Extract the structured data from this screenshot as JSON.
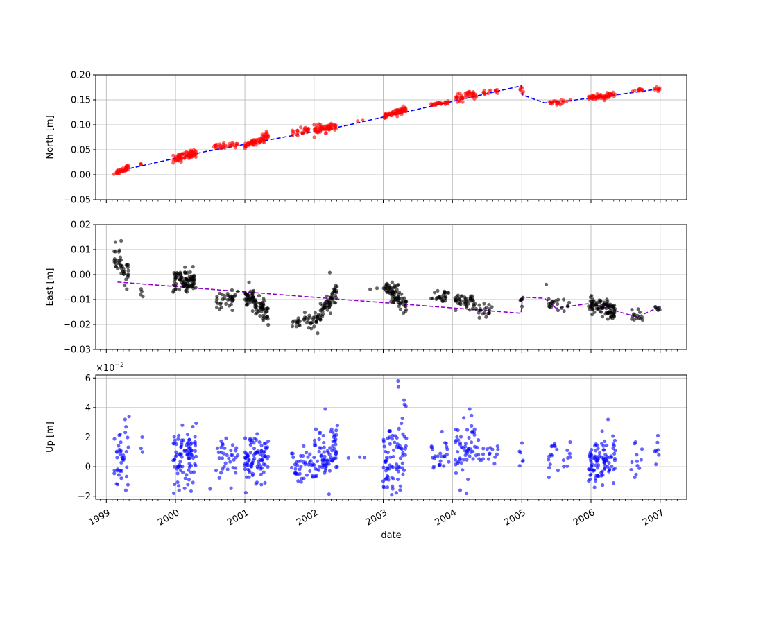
{
  "figure": {
    "xlabel": "date",
    "x_range": [
      "1998-11-06",
      "2007-05-21"
    ],
    "x_ticks": [
      "1999",
      "2000",
      "2001",
      "2002",
      "2003",
      "2004",
      "2005",
      "2006",
      "2007"
    ],
    "grid": true,
    "legend": "none"
  },
  "chart_data": [
    {
      "type": "scatter",
      "panel": "north",
      "ylabel": "North [m]",
      "ylim": [
        -0.05,
        0.2
      ],
      "yticks": [
        -0.05,
        0.0,
        0.05,
        0.1,
        0.15,
        0.2
      ],
      "ytick_labels": [
        "−0.05",
        "0.00",
        "0.05",
        "0.10",
        "0.15",
        "0.20"
      ],
      "point_color": "#ff0000",
      "trend_color": "#0000ff",
      "clusters": [
        {
          "start": "1999-02-10",
          "end": "1999-04-30",
          "n": 34,
          "noise": 0.003,
          "y0": 0.002,
          "y1": 0.016
        },
        {
          "start": "1999-07-01",
          "end": "1999-07-10",
          "n": 3,
          "noise": 0.003,
          "y0": 0.02,
          "y1": 0.021
        },
        {
          "start": "1999-12-20",
          "end": "2000-04-20",
          "n": 70,
          "noise": 0.004,
          "y0": 0.03,
          "y1": 0.045
        },
        {
          "start": "2000-07-20",
          "end": "2000-11-25",
          "n": 30,
          "noise": 0.003,
          "y0": 0.054,
          "y1": 0.062
        },
        {
          "start": "2001-01-01",
          "end": "2001-05-05",
          "n": 65,
          "noise": 0.004,
          "y0": 0.059,
          "y1": 0.077
        },
        {
          "start": "2001-09-01",
          "end": "2001-12-10",
          "n": 25,
          "noise": 0.004,
          "y0": 0.082,
          "y1": 0.092
        },
        {
          "start": "2002-01-01",
          "end": "2002-05-05",
          "n": 60,
          "noise": 0.004,
          "y0": 0.089,
          "y1": 0.097
        },
        {
          "start": "2002-08-15",
          "end": "2002-12-01",
          "n": 2,
          "noise": 0.002,
          "y0": 0.106,
          "y1": 0.114
        },
        {
          "start": "2003-01-01",
          "end": "2003-05-05",
          "n": 60,
          "noise": 0.003,
          "y0": 0.117,
          "y1": 0.131
        },
        {
          "start": "2003-09-10",
          "end": "2003-12-15",
          "n": 25,
          "noise": 0.002,
          "y0": 0.14,
          "y1": 0.145
        },
        {
          "start": "2004-01-20",
          "end": "2004-05-10",
          "n": 45,
          "noise": 0.004,
          "y0": 0.152,
          "y1": 0.162
        },
        {
          "start": "2004-06-01",
          "end": "2004-08-31",
          "n": 14,
          "noise": 0.002,
          "y0": 0.163,
          "y1": 0.169
        },
        {
          "start": "2004-12-20",
          "end": "2005-01-10",
          "n": 6,
          "noise": 0.004,
          "y0": 0.171,
          "y1": 0.163
        },
        {
          "start": "2005-05-20",
          "end": "2005-09-15",
          "n": 22,
          "noise": 0.003,
          "y0": 0.144,
          "y1": 0.148
        },
        {
          "start": "2005-12-20",
          "end": "2006-05-10",
          "n": 65,
          "noise": 0.003,
          "y0": 0.153,
          "y1": 0.161
        },
        {
          "start": "2006-08-01",
          "end": "2006-10-01",
          "n": 10,
          "noise": 0.002,
          "y0": 0.167,
          "y1": 0.17
        },
        {
          "start": "2006-12-01",
          "end": "2006-12-31",
          "n": 8,
          "noise": 0.003,
          "y0": 0.171,
          "y1": 0.172
        }
      ],
      "trend": [
        {
          "x": "1999-03-01",
          "y": 0.007
        },
        {
          "x": "2000-06-01",
          "y": 0.046
        },
        {
          "x": "2002-06-01",
          "y": 0.097
        },
        {
          "x": "2004-12-28",
          "y": 0.178
        },
        {
          "x": "2005-01-05",
          "y": 0.16
        },
        {
          "x": "2005-05-01",
          "y": 0.144
        },
        {
          "x": "2005-09-01",
          "y": 0.148
        },
        {
          "x": "2006-06-01",
          "y": 0.161
        },
        {
          "x": "2006-12-28",
          "y": 0.172
        }
      ]
    },
    {
      "type": "scatter",
      "panel": "east",
      "ylabel": "East [m]",
      "ylim": [
        -0.03,
        0.02
      ],
      "yticks": [
        -0.03,
        -0.02,
        -0.01,
        0.0,
        0.01,
        0.02
      ],
      "ytick_labels": [
        "−0.03",
        "−0.02",
        "−0.01",
        "0.00",
        "0.01",
        "0.02"
      ],
      "point_color": "#000000",
      "trend_color": "#9400d3",
      "clusters": [
        {
          "start": "1999-02-10",
          "end": "1999-04-30",
          "n": 40,
          "noise": 0.0025,
          "y0": 0.006,
          "y1": 0.0
        },
        {
          "start": "1999-07-01",
          "end": "1999-07-15",
          "n": 4,
          "noise": 0.002,
          "y0": -0.004,
          "y1": -0.007
        },
        {
          "start": "1999-12-20",
          "end": "2000-04-20",
          "n": 90,
          "noise": 0.0022,
          "y0": -0.003,
          "y1": -0.002
        },
        {
          "start": "2000-08-01",
          "end": "2000-11-25",
          "n": 35,
          "noise": 0.002,
          "y0": -0.011,
          "y1": -0.009
        },
        {
          "start": "2001-01-01",
          "end": "2001-05-05",
          "n": 90,
          "noise": 0.002,
          "y0": -0.008,
          "y1": -0.016
        },
        {
          "start": "2001-09-01",
          "end": "2001-12-31",
          "n": 30,
          "noise": 0.0015,
          "y0": -0.019,
          "y1": -0.019
        },
        {
          "start": "2002-01-01",
          "end": "2002-05-05",
          "n": 70,
          "noise": 0.002,
          "y0": -0.019,
          "y1": -0.006
        },
        {
          "start": "2002-08-15",
          "end": "2002-12-05",
          "n": 2,
          "noise": 0.001,
          "y0": -0.006,
          "y1": -0.006
        },
        {
          "start": "2003-01-01",
          "end": "2003-05-05",
          "n": 75,
          "noise": 0.002,
          "y0": -0.005,
          "y1": -0.011
        },
        {
          "start": "2003-09-10",
          "end": "2003-12-15",
          "n": 25,
          "noise": 0.0015,
          "y0": -0.008,
          "y1": -0.009
        },
        {
          "start": "2004-01-15",
          "end": "2004-04-30",
          "n": 45,
          "noise": 0.0018,
          "y0": -0.011,
          "y1": -0.012
        },
        {
          "start": "2004-05-01",
          "end": "2004-08-31",
          "n": 20,
          "noise": 0.0015,
          "y0": -0.015,
          "y1": -0.015
        },
        {
          "start": "2004-12-20",
          "end": "2005-01-10",
          "n": 6,
          "noise": 0.002,
          "y0": -0.01,
          "y1": -0.01
        },
        {
          "start": "2005-05-20",
          "end": "2005-09-15",
          "n": 20,
          "noise": 0.0015,
          "y0": -0.011,
          "y1": -0.013
        },
        {
          "start": "2005-12-20",
          "end": "2006-05-10",
          "n": 90,
          "noise": 0.0018,
          "y0": -0.012,
          "y1": -0.015
        },
        {
          "start": "2006-08-01",
          "end": "2006-10-01",
          "n": 14,
          "noise": 0.0015,
          "y0": -0.016,
          "y1": -0.018
        },
        {
          "start": "2006-12-01",
          "end": "2006-12-31",
          "n": 6,
          "noise": 0.001,
          "y0": -0.013,
          "y1": -0.013
        }
      ],
      "extra_points": [
        {
          "x": "1999-03-20",
          "y": 0.0135
        },
        {
          "x": "2005-05-10",
          "y": -0.004
        },
        {
          "x": "2002-03-25",
          "y": 0.0008
        },
        {
          "x": "2002-01-20",
          "y": -0.0235
        }
      ],
      "trend": [
        {
          "x": "1999-03-01",
          "y": -0.003
        },
        {
          "x": "2004-12-28",
          "y": -0.0155
        },
        {
          "x": "2005-01-05",
          "y": -0.009
        },
        {
          "x": "2005-05-01",
          "y": -0.0095
        },
        {
          "x": "2005-07-01",
          "y": -0.0135
        },
        {
          "x": "2006-01-01",
          "y": -0.0115
        },
        {
          "x": "2006-06-01",
          "y": -0.015
        },
        {
          "x": "2006-09-01",
          "y": -0.017
        },
        {
          "x": "2006-12-28",
          "y": -0.013
        }
      ]
    },
    {
      "type": "scatter",
      "panel": "up",
      "ylabel": "Up [m]",
      "offset_text": "×10",
      "offset_exponent": "−2",
      "ylim": [
        -2.2,
        6.2
      ],
      "yticks": [
        -2,
        0,
        2,
        4,
        6
      ],
      "ytick_labels": [
        "−2",
        "0",
        "2",
        "4",
        "6"
      ],
      "point_color": "#0000ff",
      "clusters": [
        {
          "start": "1999-02-10",
          "end": "1999-04-30",
          "n": 38,
          "noise": 0.9,
          "y0": 0.6,
          "y1": 0.8
        },
        {
          "start": "1999-07-01",
          "end": "1999-07-15",
          "n": 3,
          "noise": 0.8,
          "y0": 0.5,
          "y1": 0.5
        },
        {
          "start": "1999-12-20",
          "end": "2000-04-20",
          "n": 90,
          "noise": 1.0,
          "y0": 0.5,
          "y1": 0.8
        },
        {
          "start": "2000-08-01",
          "end": "2000-11-25",
          "n": 35,
          "noise": 0.7,
          "y0": 0.3,
          "y1": 0.4
        },
        {
          "start": "2001-01-01",
          "end": "2001-05-05",
          "n": 90,
          "noise": 0.8,
          "y0": 0.5,
          "y1": 0.6
        },
        {
          "start": "2001-09-01",
          "end": "2001-12-31",
          "n": 40,
          "noise": 0.6,
          "y0": 0.2,
          "y1": 0.3
        },
        {
          "start": "2002-01-01",
          "end": "2002-05-05",
          "n": 80,
          "noise": 0.9,
          "y0": 0.4,
          "y1": 1.0
        },
        {
          "start": "2002-08-15",
          "end": "2002-12-05",
          "n": 2,
          "noise": 0.1,
          "y0": 0.6,
          "y1": 0.7
        },
        {
          "start": "2003-01-01",
          "end": "2003-05-05",
          "n": 80,
          "noise": 1.2,
          "y0": 0.5,
          "y1": 1.5
        },
        {
          "start": "2003-09-10",
          "end": "2003-12-15",
          "n": 25,
          "noise": 0.7,
          "y0": 0.6,
          "y1": 0.4
        },
        {
          "start": "2004-01-15",
          "end": "2004-04-30",
          "n": 50,
          "noise": 1.0,
          "y0": 0.7,
          "y1": 1.4
        },
        {
          "start": "2004-05-01",
          "end": "2004-08-31",
          "n": 20,
          "noise": 0.6,
          "y0": 0.7,
          "y1": 0.8
        },
        {
          "start": "2004-12-20",
          "end": "2005-01-10",
          "n": 6,
          "noise": 0.8,
          "y0": 0.4,
          "y1": 0.3
        },
        {
          "start": "2005-05-20",
          "end": "2005-09-15",
          "n": 22,
          "noise": 0.7,
          "y0": 1.0,
          "y1": 0.3
        },
        {
          "start": "2005-12-20",
          "end": "2006-05-10",
          "n": 95,
          "noise": 0.8,
          "y0": 0.0,
          "y1": 0.8
        },
        {
          "start": "2006-08-01",
          "end": "2006-10-01",
          "n": 12,
          "noise": 0.7,
          "y0": 0.3,
          "y1": 0.3
        },
        {
          "start": "2006-12-01",
          "end": "2006-12-31",
          "n": 7,
          "noise": 0.6,
          "y0": 0.6,
          "y1": 0.8
        }
      ],
      "extra_points": [
        {
          "x": "2003-03-20",
          "y": 5.8
        },
        {
          "x": "2003-03-22",
          "y": 5.4
        },
        {
          "x": "2003-05-01",
          "y": 4.1
        },
        {
          "x": "2004-04-01",
          "y": 3.9
        },
        {
          "x": "2002-03-01",
          "y": 3.9
        },
        {
          "x": "1999-05-01",
          "y": 3.4
        },
        {
          "x": "1999-04-10",
          "y": 3.2
        },
        {
          "x": "2006-04-01",
          "y": 3.2
        },
        {
          "x": "2004-03-01",
          "y": 3.3
        },
        {
          "x": "2000-04-01",
          "y": 2.7
        },
        {
          "x": "2003-02-15",
          "y": -1.9
        },
        {
          "x": "2003-02-20",
          "y": -1.5
        },
        {
          "x": "2004-03-15",
          "y": -1.8
        },
        {
          "x": "2000-01-20",
          "y": -1.6
        },
        {
          "x": "2000-07-01",
          "y": -1.5
        },
        {
          "x": "2006-01-20",
          "y": -1.4
        },
        {
          "x": "1999-03-01",
          "y": -1.2
        },
        {
          "x": "2002-07-01",
          "y": 0.6
        },
        {
          "x": "2006-12-20",
          "y": 2.1
        }
      ]
    }
  ]
}
